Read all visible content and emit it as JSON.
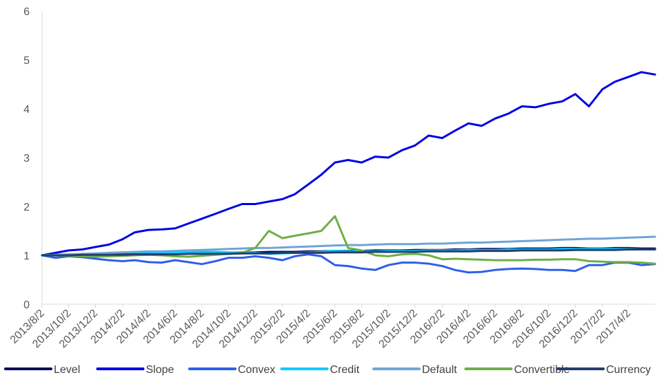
{
  "chart_data": {
    "type": "line",
    "title": "",
    "xlabel": "",
    "ylabel": "",
    "ylim": [
      0,
      6
    ],
    "yticks": [
      0,
      1,
      2,
      3,
      4,
      5,
      6
    ],
    "x_tick_labels": [
      "2013/8/2",
      "2013/10/2",
      "2013/12/2",
      "2014/2/2",
      "2014/4/2",
      "2014/6/2",
      "2014/8/2",
      "2014/10/2",
      "2014/12/2",
      "2015/2/2",
      "2015/4/2",
      "2015/6/2",
      "2015/8/2",
      "2015/10/2",
      "2015/12/2",
      "2016/2/2",
      "2016/4/2",
      "2016/6/2",
      "2016/8/2",
      "2016/10/2",
      "2016/12/2",
      "2017/2/2",
      "2017/4/2"
    ],
    "x": [
      "2013-08-02",
      "2013-09-02",
      "2013-10-02",
      "2013-11-02",
      "2013-12-02",
      "2014-01-02",
      "2014-02-02",
      "2014-03-02",
      "2014-04-02",
      "2014-05-02",
      "2014-06-02",
      "2014-07-02",
      "2014-08-02",
      "2014-09-02",
      "2014-10-02",
      "2014-11-02",
      "2014-12-02",
      "2015-01-02",
      "2015-02-02",
      "2015-03-02",
      "2015-04-02",
      "2015-05-02",
      "2015-06-02",
      "2015-07-02",
      "2015-08-02",
      "2015-09-02",
      "2015-10-02",
      "2015-11-02",
      "2015-12-02",
      "2016-01-02",
      "2016-02-02",
      "2016-03-02",
      "2016-04-02",
      "2016-05-02",
      "2016-06-02",
      "2016-07-02",
      "2016-08-02",
      "2016-09-02",
      "2016-10-02",
      "2016-11-02",
      "2016-12-02",
      "2017-01-02",
      "2017-02-02",
      "2017-03-02",
      "2017-04-02",
      "2017-05-02",
      "2017-06-02"
    ],
    "grid": false,
    "legend_position": "bottom",
    "series": [
      {
        "name": "Level",
        "color": "#0b0b5c",
        "width": 3,
        "values": [
          1.0,
          1.0,
          1.01,
          1.02,
          1.02,
          1.03,
          1.02,
          1.03,
          1.03,
          1.04,
          1.03,
          1.04,
          1.04,
          1.05,
          1.05,
          1.06,
          1.06,
          1.07,
          1.07,
          1.07,
          1.08,
          1.08,
          1.09,
          1.09,
          1.09,
          1.1,
          1.1,
          1.1,
          1.11,
          1.11,
          1.11,
          1.12,
          1.12,
          1.13,
          1.13,
          1.13,
          1.14,
          1.14,
          1.14,
          1.15,
          1.15,
          1.14,
          1.14,
          1.15,
          1.15,
          1.14,
          1.14
        ]
      },
      {
        "name": "Slope",
        "color": "#0000e6",
        "width": 3,
        "values": [
          1.0,
          1.05,
          1.1,
          1.12,
          1.17,
          1.22,
          1.33,
          1.47,
          1.52,
          1.53,
          1.55,
          1.65,
          1.75,
          1.85,
          1.95,
          2.05,
          2.05,
          2.1,
          2.15,
          2.25,
          2.45,
          2.65,
          2.9,
          2.95,
          2.9,
          3.02,
          3.0,
          3.15,
          3.25,
          3.45,
          3.4,
          3.55,
          3.7,
          3.65,
          3.8,
          3.9,
          4.05,
          4.03,
          4.1,
          4.15,
          4.3,
          4.05,
          4.4,
          4.55,
          4.65,
          4.75,
          4.7
        ]
      },
      {
        "name": "Convex",
        "color": "#2e5fe8",
        "width": 3,
        "values": [
          1.0,
          0.95,
          0.98,
          0.96,
          0.93,
          0.9,
          0.88,
          0.9,
          0.86,
          0.85,
          0.9,
          0.86,
          0.82,
          0.88,
          0.95,
          0.95,
          0.98,
          0.95,
          0.9,
          0.98,
          1.02,
          0.98,
          0.8,
          0.78,
          0.73,
          0.7,
          0.8,
          0.85,
          0.85,
          0.83,
          0.78,
          0.7,
          0.65,
          0.66,
          0.7,
          0.72,
          0.73,
          0.72,
          0.7,
          0.7,
          0.68,
          0.8,
          0.8,
          0.85,
          0.85,
          0.8,
          0.82
        ]
      },
      {
        "name": "Credit",
        "color": "#00ccff",
        "width": 3,
        "values": [
          1.0,
          1.01,
          1.02,
          1.02,
          1.03,
          1.05,
          1.06,
          1.06,
          1.06,
          1.05,
          1.05,
          1.06,
          1.07,
          1.07,
          1.06,
          1.06,
          1.05,
          1.03,
          1.04,
          1.05,
          1.06,
          1.07,
          1.09,
          1.08,
          1.08,
          1.08,
          1.09,
          1.09,
          1.09,
          1.1,
          1.1,
          1.1,
          1.11,
          1.11,
          1.11,
          1.12,
          1.12,
          1.12,
          1.12,
          1.13,
          1.13,
          1.13,
          1.13,
          1.13,
          1.13,
          1.12,
          1.12
        ]
      },
      {
        "name": "Default",
        "color": "#6ea4d8",
        "width": 3,
        "values": [
          1.0,
          1.01,
          1.02,
          1.03,
          1.04,
          1.05,
          1.06,
          1.07,
          1.08,
          1.08,
          1.09,
          1.1,
          1.11,
          1.12,
          1.13,
          1.14,
          1.15,
          1.15,
          1.16,
          1.17,
          1.18,
          1.19,
          1.2,
          1.21,
          1.21,
          1.22,
          1.23,
          1.23,
          1.23,
          1.24,
          1.24,
          1.25,
          1.26,
          1.26,
          1.27,
          1.28,
          1.29,
          1.3,
          1.31,
          1.32,
          1.33,
          1.34,
          1.34,
          1.35,
          1.36,
          1.37,
          1.38
        ]
      },
      {
        "name": "Convertible",
        "color": "#70ad47",
        "width": 3,
        "values": [
          1.0,
          1.0,
          0.99,
          0.98,
          0.97,
          0.98,
          0.99,
          1.0,
          1.01,
          1.0,
          0.98,
          0.97,
          0.99,
          1.01,
          1.03,
          1.05,
          1.15,
          1.5,
          1.35,
          1.4,
          1.45,
          1.5,
          1.8,
          1.15,
          1.1,
          1.0,
          0.98,
          1.02,
          1.03,
          1.0,
          0.92,
          0.93,
          0.92,
          0.91,
          0.9,
          0.9,
          0.9,
          0.91,
          0.91,
          0.92,
          0.92,
          0.88,
          0.87,
          0.86,
          0.86,
          0.85,
          0.83
        ]
      },
      {
        "name": "Currency",
        "color": "#243f6b",
        "width": 3,
        "values": [
          1.0,
          1.0,
          1.0,
          1.01,
          1.01,
          1.01,
          1.01,
          1.02,
          1.02,
          1.02,
          1.02,
          1.03,
          1.03,
          1.03,
          1.03,
          1.04,
          1.04,
          1.04,
          1.05,
          1.05,
          1.05,
          1.05,
          1.06,
          1.06,
          1.06,
          1.07,
          1.07,
          1.07,
          1.07,
          1.08,
          1.08,
          1.08,
          1.08,
          1.09,
          1.09,
          1.09,
          1.1,
          1.1,
          1.1,
          1.1,
          1.11,
          1.11,
          1.11,
          1.11,
          1.12,
          1.12,
          1.12
        ]
      }
    ]
  }
}
